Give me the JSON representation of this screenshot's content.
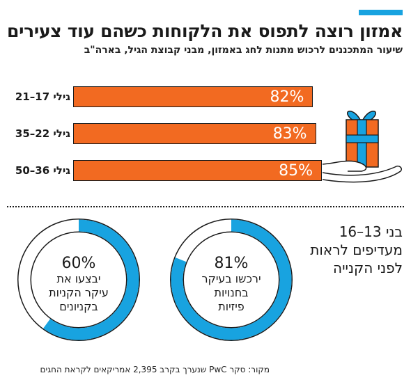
{
  "header": {
    "title": "אמזון רוצה לתפוס את הלקוחות כשהם עוד צעירים",
    "subtitle": "שיעור המתכננים לרכוש מתנות לחג באמזון, מבני קבוצת הגיל, בארה\"ב"
  },
  "chart_data": [
    {
      "type": "bar",
      "orientation": "horizontal",
      "categories": [
        "גילי 17–21",
        "גילי 22–35",
        "גילי 36–50"
      ],
      "values": [
        82,
        83,
        85
      ],
      "value_labels": [
        "82%",
        "83%",
        "85%"
      ],
      "unit": "%",
      "color": "#f26a21"
    },
    {
      "type": "pie",
      "title_lines": [
        "בני 13–16",
        "מעדיפים לראות",
        "לפני הקנייה"
      ],
      "charts": [
        {
          "value": 81,
          "label": "81%",
          "text_lines": [
            "ירכשו בעיקר",
            "בחנויות",
            "פיזיות"
          ]
        },
        {
          "value": 60,
          "label": "60%",
          "text_lines": [
            "יבצעו את",
            "עיקר הקניות",
            "בקניונים"
          ]
        }
      ],
      "colors": {
        "filled": "#18a3e0",
        "empty": "#ffffff",
        "outline": "#1a1a1a"
      }
    }
  ],
  "footer": {
    "source": "מקור: סקר PwC שנערך בקרב 2,395 אמריקאים לקראת החגים"
  }
}
